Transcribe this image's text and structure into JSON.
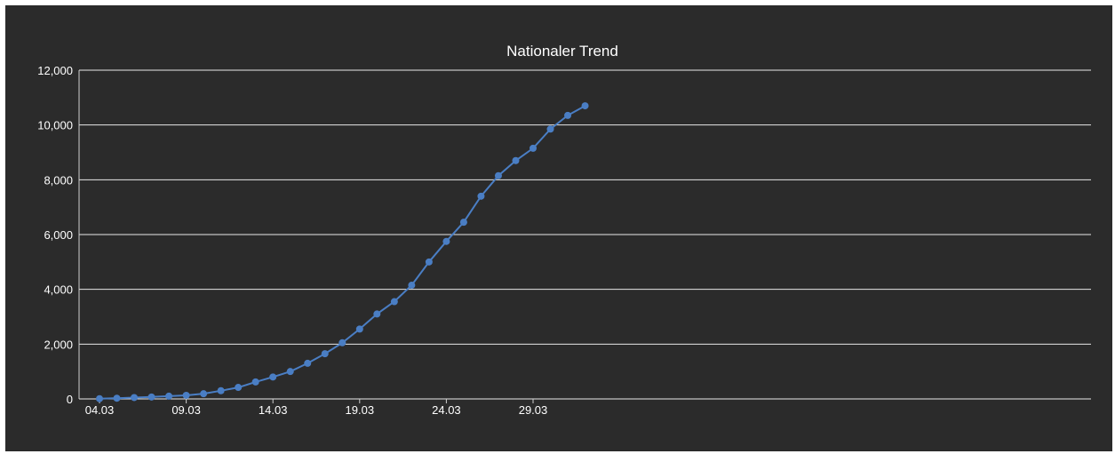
{
  "colors": {
    "background": "#2b2b2b",
    "series": "#4a7ec4",
    "text": "#ffffff",
    "grid": "#e8e8e8"
  },
  "chart_data": {
    "type": "line",
    "title": "Nationaler Trend",
    "xlabel": "",
    "ylabel": "",
    "ylim": [
      0,
      12000
    ],
    "yticks": [
      "0",
      "2,000",
      "4,000",
      "6,000",
      "8,000",
      "10,000",
      "12,000"
    ],
    "ytick_values": [
      0,
      2000,
      4000,
      6000,
      8000,
      10000,
      12000
    ],
    "xtick_labels": [
      "04.03",
      "09.03",
      "14.03",
      "19.03",
      "24.03",
      "29.03"
    ],
    "x": [
      "04.03",
      "05.03",
      "06.03",
      "07.03",
      "08.03",
      "09.03",
      "10.03",
      "11.03",
      "12.03",
      "13.03",
      "14.03",
      "15.03",
      "16.03",
      "17.03",
      "18.03",
      "19.03",
      "20.03",
      "21.03",
      "22.03",
      "23.03",
      "24.03",
      "25.03",
      "26.03",
      "27.03",
      "28.03",
      "29.03",
      "30.03",
      "31.03",
      "01.04"
    ],
    "series": [
      {
        "values": [
          10,
          25,
          50,
          70,
          100,
          130,
          190,
          300,
          420,
          620,
          800,
          1000,
          1300,
          1650,
          2050,
          2550,
          3100,
          3550,
          4150,
          5000,
          5750,
          6450,
          7400,
          8150,
          8700,
          9150,
          9850,
          10350,
          10700
        ]
      }
    ],
    "grid": true,
    "legend": "none"
  }
}
